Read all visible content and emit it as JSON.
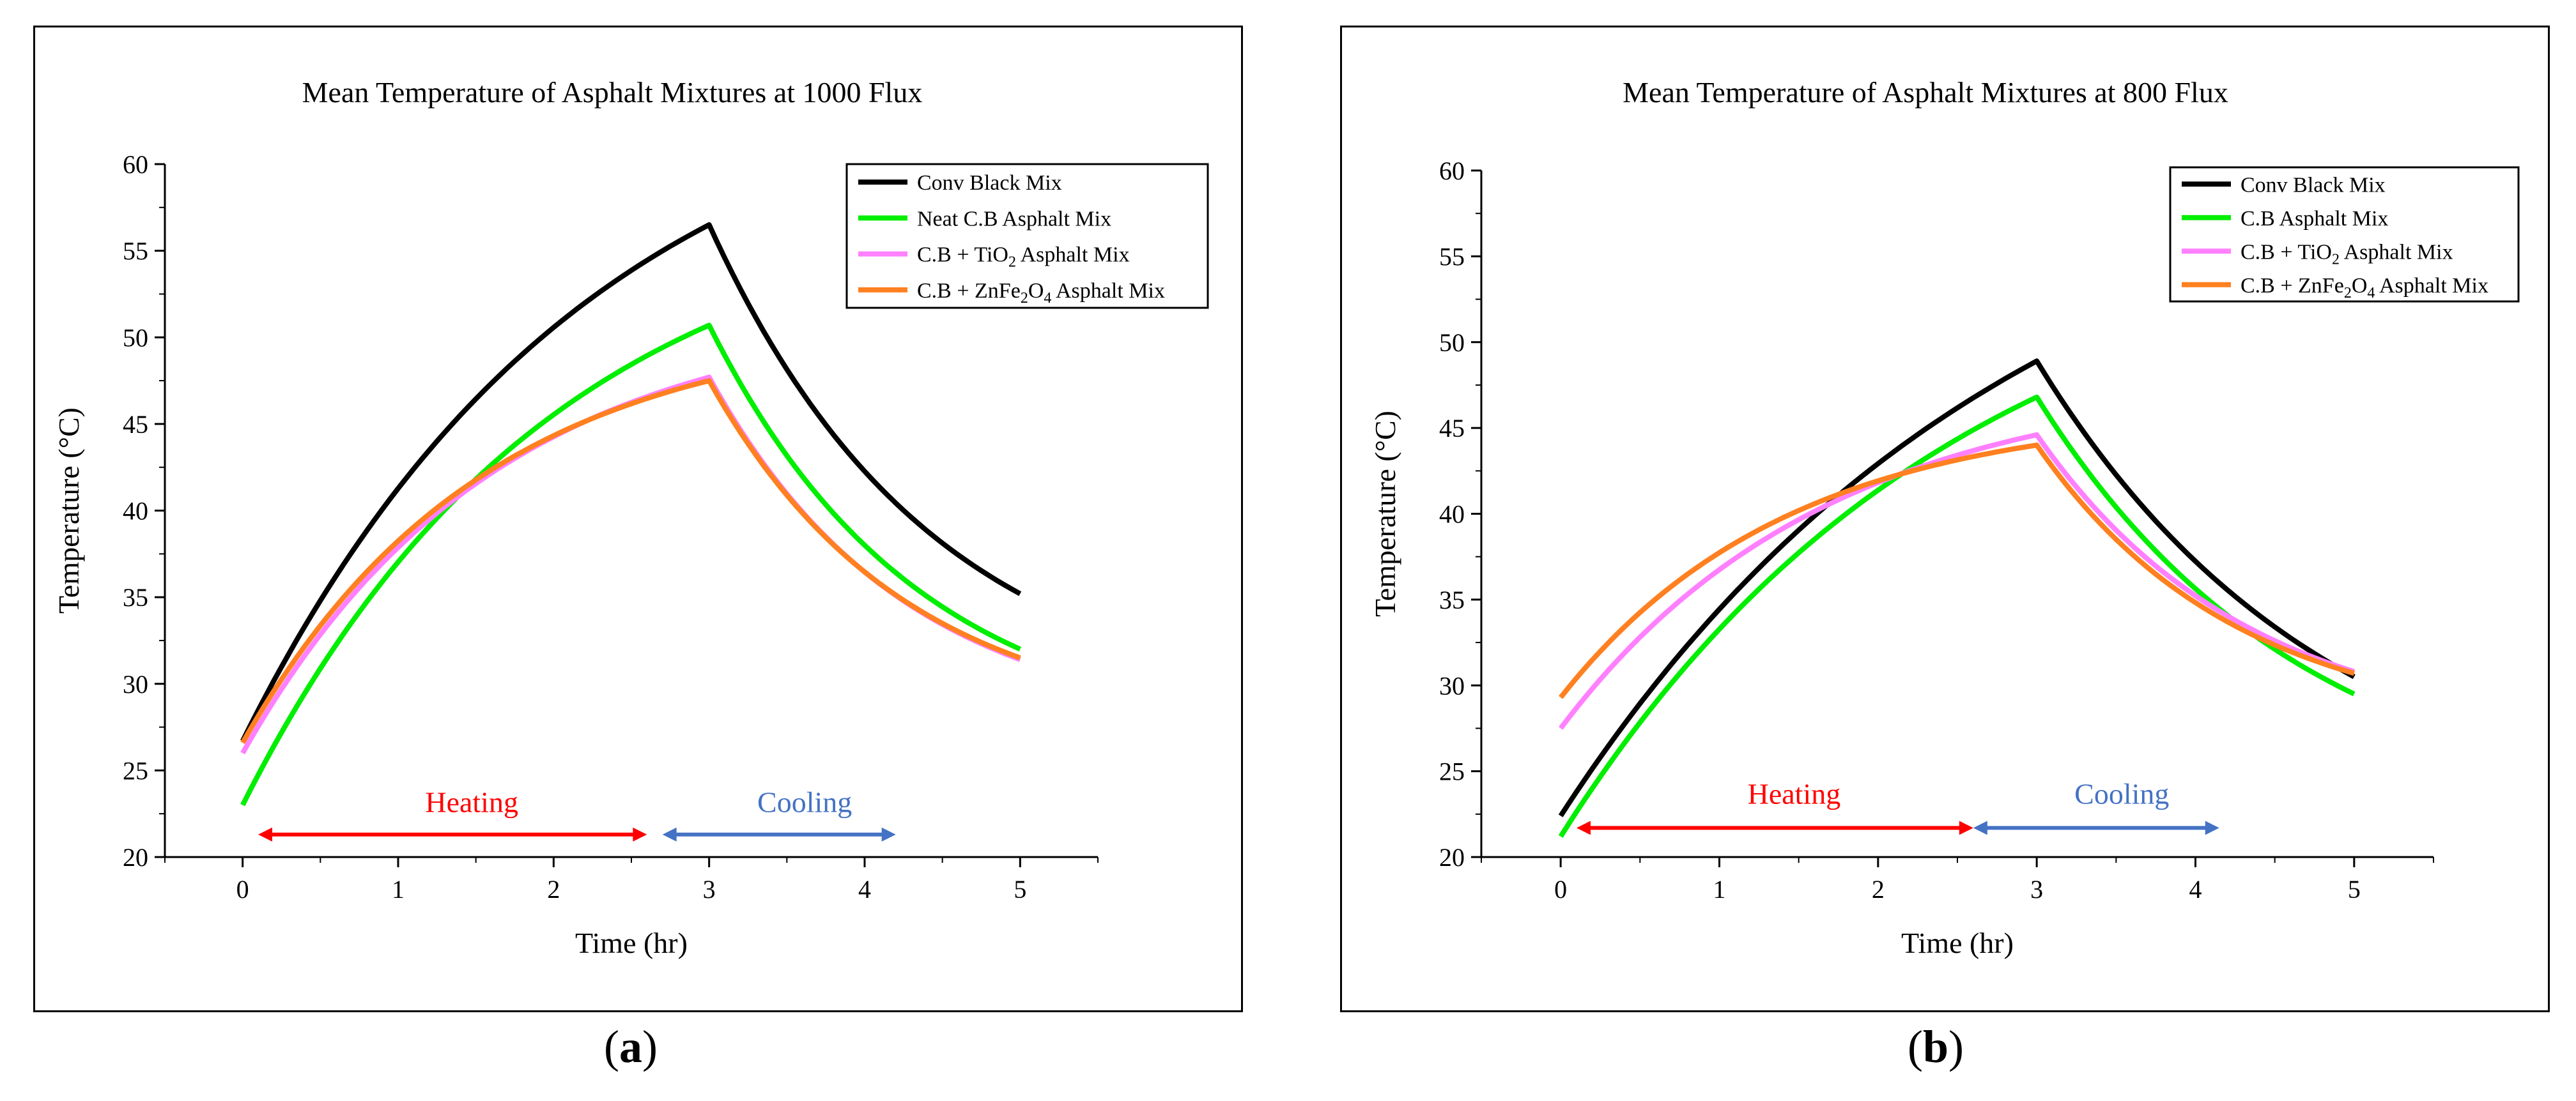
{
  "panels": [
    {
      "id": "a",
      "caption_open": "(",
      "caption_letter": "a",
      "caption_close": ")",
      "chart_data": {
        "type": "line",
        "title": "Mean Temperature of Asphalt Mixtures at 1000 Flux",
        "xlabel": "Time (hr)",
        "ylabel": "Temperature (°C)",
        "xlim": [
          -0.5,
          5.5
        ],
        "ylim": [
          20,
          60
        ],
        "xticks": [
          0,
          1,
          2,
          3,
          4,
          5
        ],
        "yticks": [
          20,
          25,
          30,
          35,
          40,
          45,
          50,
          55,
          60
        ],
        "legend_position": "top-right",
        "annotations": [
          {
            "text": "Heating",
            "color": "#ff0000",
            "x_start": 0.1,
            "x_end": 2.6,
            "y": 21.3,
            "label_y": 22.6
          },
          {
            "text": "Cooling",
            "color": "#4472c4",
            "x_start": 2.7,
            "x_end": 4.2,
            "y": 21.3,
            "label_y": 22.6
          }
        ],
        "series": [
          {
            "name": "Conv Black Mix",
            "sub": "",
            "suffix": "",
            "color": "#000000",
            "heat_start": 26.7,
            "heat_end": 56.5,
            "heat_k": 0.45,
            "cool_end": 35.2,
            "cool_k": 0.7
          },
          {
            "name": "Neat C.B Asphalt Mix",
            "sub": "",
            "suffix": "",
            "color": "#00ee00",
            "heat_start": 23.0,
            "heat_end": 50.7,
            "heat_k": 0.5,
            "cool_end": 32.0,
            "cool_k": 0.75
          },
          {
            "name": "C.B + TiO",
            "sub": "2",
            "suffix": " Asphalt Mix",
            "color": "#ff80ff",
            "heat_start": 26.0,
            "heat_end": 47.7,
            "heat_k": 0.62,
            "cool_end": 31.4,
            "cool_k": 0.8
          },
          {
            "name": "C.B + ZnFe",
            "sub": "2",
            "suffix": "O",
            "sub2": "4",
            "suffix2": " Asphalt Mix",
            "color": "#ff8020",
            "heat_start": 26.6,
            "heat_end": 47.5,
            "heat_k": 0.65,
            "cool_end": 31.5,
            "cool_k": 0.8
          }
        ]
      }
    },
    {
      "id": "b",
      "caption_open": "(",
      "caption_letter": "b",
      "caption_close": ")",
      "chart_data": {
        "type": "line",
        "title": "Mean Temperature of Asphalt Mixtures at 800 Flux",
        "xlabel": "Time (hr)",
        "ylabel": "Temperature (°C)",
        "xlim": [
          -0.5,
          5.5
        ],
        "ylim": [
          20,
          60
        ],
        "xticks": [
          0,
          1,
          2,
          3,
          4,
          5
        ],
        "yticks": [
          20,
          25,
          30,
          35,
          40,
          45,
          50,
          55,
          60
        ],
        "legend_position": "top-right",
        "annotations": [
          {
            "text": "Heating",
            "color": "#ff0000",
            "x_start": 0.1,
            "x_end": 2.6,
            "y": 21.7,
            "label_y": 23.1
          },
          {
            "text": "Cooling",
            "color": "#4472c4",
            "x_start": 2.6,
            "x_end": 4.15,
            "y": 21.7,
            "label_y": 23.1
          }
        ],
        "series": [
          {
            "name": "Conv Black Mix",
            "sub": "",
            "suffix": "",
            "color": "#000000",
            "heat_start": 22.4,
            "heat_end": 48.9,
            "heat_k": 0.35,
            "cool_end": 30.5,
            "cool_k": 0.55
          },
          {
            "name": "C.B Asphalt Mix",
            "sub": "",
            "suffix": "",
            "color": "#00ee00",
            "heat_start": 21.2,
            "heat_end": 46.8,
            "heat_k": 0.4,
            "cool_end": 29.5,
            "cool_k": 0.6
          },
          {
            "name": "C.B + TiO",
            "sub": "2",
            "suffix": " Asphalt Mix",
            "color": "#ff80ff",
            "heat_start": 27.5,
            "heat_end": 44.6,
            "heat_k": 0.6,
            "cool_end": 30.8,
            "cool_k": 0.75
          },
          {
            "name": "C.B + ZnFe",
            "sub": "2",
            "suffix": "O",
            "sub2": "4",
            "suffix2": " Asphalt Mix",
            "color": "#ff8020",
            "heat_start": 29.3,
            "heat_end": 44.0,
            "heat_k": 0.7,
            "cool_end": 30.7,
            "cool_k": 0.8
          }
        ]
      }
    }
  ]
}
